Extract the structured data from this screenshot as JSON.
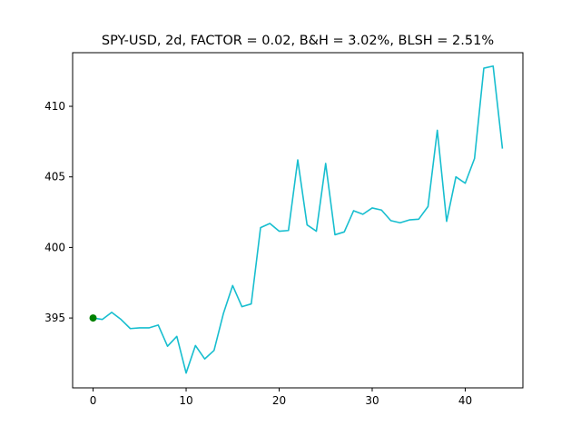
{
  "chart_data": {
    "type": "line",
    "title": "SPY-USD, 2d, FACTOR = 0.02, B&H = 3.02%, BLSH = 2.51%",
    "xlabel": "",
    "ylabel": "",
    "xlim": [
      -2.2,
      46.2
    ],
    "ylim": [
      390.05,
      413.8
    ],
    "x_ticks": [
      0,
      10,
      20,
      30,
      40
    ],
    "y_ticks": [
      395,
      400,
      405,
      410
    ],
    "grid": false,
    "series": [
      {
        "color": "#17becf",
        "x": [
          0,
          1,
          2,
          3,
          4,
          5,
          6,
          7,
          8,
          9,
          10,
          11,
          12,
          13,
          14,
          15,
          16,
          17,
          18,
          19,
          20,
          21,
          22,
          23,
          24,
          25,
          26,
          27,
          28,
          29,
          30,
          31,
          32,
          33,
          34,
          35,
          36,
          37,
          38,
          39,
          40,
          41,
          42,
          43,
          44
        ],
        "values": [
          395.0,
          394.9,
          395.4,
          394.9,
          394.25,
          394.3,
          394.3,
          394.5,
          393.0,
          393.7,
          391.1,
          393.05,
          392.1,
          392.7,
          395.3,
          397.3,
          395.8,
          396.0,
          401.4,
          401.7,
          401.15,
          401.2,
          406.2,
          401.6,
          401.15,
          405.95,
          400.9,
          401.1,
          402.6,
          402.35,
          402.8,
          402.65,
          401.9,
          401.75,
          401.95,
          402.0,
          402.9,
          408.3,
          401.85,
          405.0,
          404.55,
          406.3,
          412.7,
          412.85,
          407.0
        ]
      }
    ],
    "markers": [
      {
        "x": 0,
        "y": 395.0,
        "color": "#008000"
      }
    ]
  }
}
